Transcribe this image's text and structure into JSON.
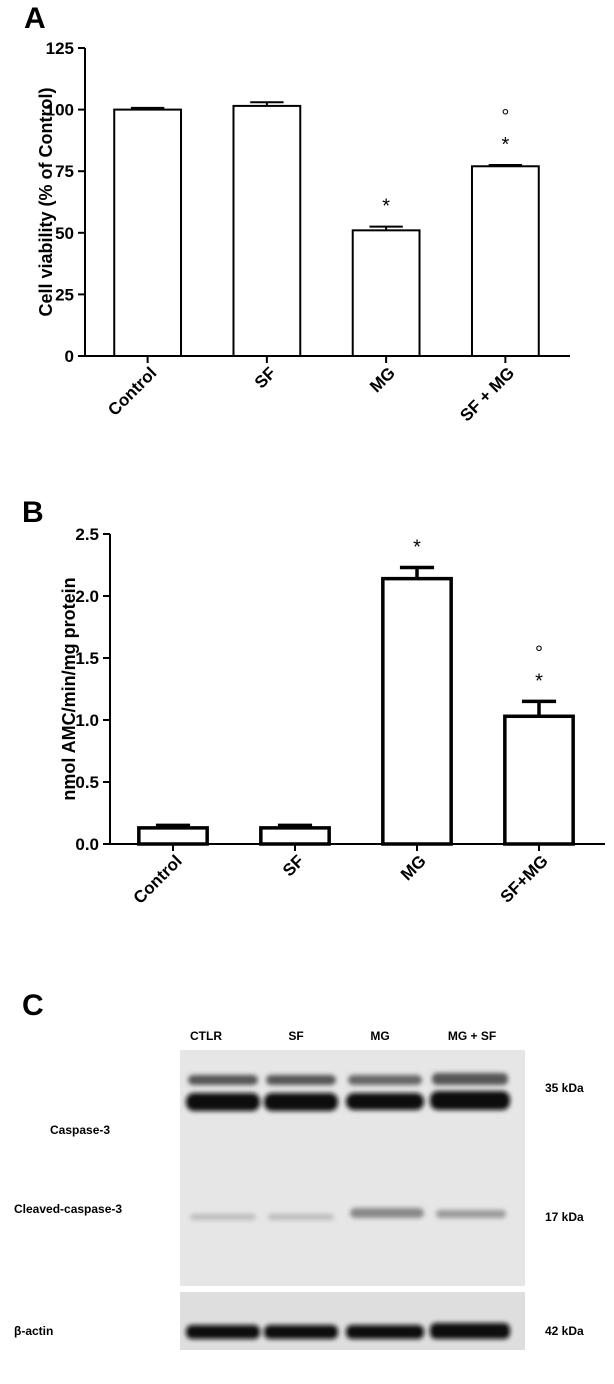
{
  "chart_data": [
    {
      "type": "bar",
      "panel_label": "A",
      "y_label": "Cell viability (% of Control)",
      "categories": [
        "Control",
        "SF",
        "MG",
        "SF + MG"
      ],
      "values": [
        100,
        101.5,
        51,
        77
      ],
      "errors": [
        0.7,
        1.5,
        1.5,
        0.5
      ],
      "ylim": [
        0,
        125
      ],
      "yticks": [
        0,
        25,
        50,
        75,
        100,
        125
      ],
      "bar_fill": "#ffffff",
      "edge_color": "#000000",
      "annotations": [
        {
          "category": "MG",
          "texts": [
            "*"
          ]
        },
        {
          "category": "SF + MG",
          "texts": [
            "*",
            "°"
          ]
        }
      ]
    },
    {
      "type": "bar",
      "panel_label": "B",
      "y_label": "nmol AMC/min/mg protein",
      "categories": [
        "Control",
        "SF",
        "MG",
        "SF+MG"
      ],
      "values": [
        0.13,
        0.13,
        2.14,
        1.03
      ],
      "errors": [
        0.02,
        0.02,
        0.09,
        0.12
      ],
      "ylim": [
        0,
        2.5
      ],
      "yticks": [
        {
          "value": 0,
          "label": "0.0"
        },
        0.5,
        {
          "value": 1,
          "label": "1.0"
        },
        1.5,
        {
          "value": 2,
          "label": "2.0"
        },
        2.5
      ],
      "bar_fill": "#ffffff",
      "edge_color": "#000000",
      "annotations": [
        {
          "category": "MG",
          "texts": [
            "*"
          ]
        },
        {
          "category": "SF+MG",
          "texts": [
            "*",
            "°"
          ]
        }
      ]
    }
  ],
  "blot": {
    "panel_label": "C",
    "lanes": [
      "CTLR",
      "SF",
      "MG",
      "MG + SF"
    ],
    "rows": [
      "Caspase-3",
      "Cleaved-caspase-3",
      "β-actin"
    ],
    "markers": [
      "35 kDa",
      "17 kDa",
      "42 kDa"
    ]
  }
}
